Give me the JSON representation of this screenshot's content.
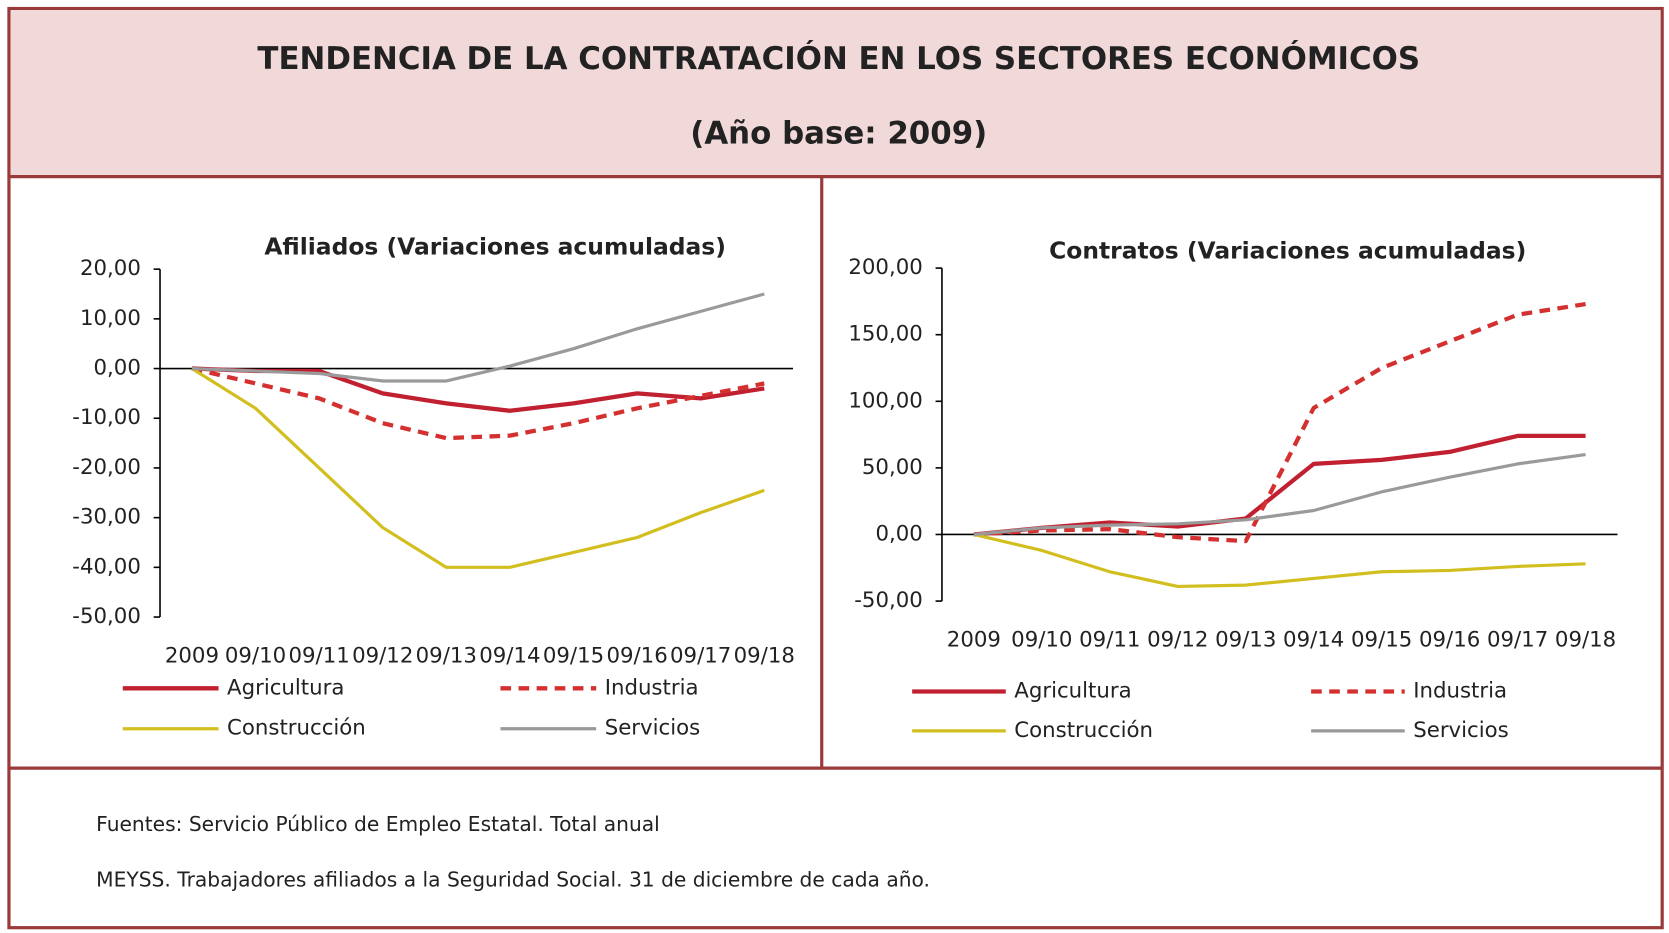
{
  "header": {
    "title": "TENDENCIA DE LA CONTRATACIÓN EN LOS SECTORES ECONÓMICOS",
    "subtitle": "(Año base: 2009)"
  },
  "chart_data": [
    {
      "type": "line",
      "title": "Afiliados (Variaciones acumuladas)",
      "categories": [
        "2009",
        "09/10",
        "09/11",
        "09/12",
        "09/13",
        "09/14",
        "09/15",
        "09/16",
        "09/17",
        "09/18"
      ],
      "ylim": [
        -50,
        20
      ],
      "yticks": [
        {
          "value": -50,
          "label": "-50,00"
        },
        {
          "value": -40,
          "label": "-40,00"
        },
        {
          "value": -30,
          "label": "-30,00"
        },
        {
          "value": -20,
          "label": "-20,00"
        },
        {
          "value": -10,
          "label": "-10,00"
        },
        {
          "value": 0,
          "label": "0,00"
        },
        {
          "value": 10,
          "label": "10,00"
        },
        {
          "value": 20,
          "label": "20,00"
        }
      ],
      "series": [
        {
          "name": "Agricultura",
          "color": "#c0202f",
          "style": "solid",
          "values": [
            0,
            -0.5,
            -0.5,
            -5,
            -7,
            -8.5,
            -7,
            -5,
            -6,
            -4
          ]
        },
        {
          "name": "Industria",
          "color": "#d43030",
          "style": "dashed",
          "values": [
            0,
            -3,
            -6,
            -11,
            -14,
            -13.5,
            -11,
            -8,
            -5.5,
            -3
          ]
        },
        {
          "name": "Construcción",
          "color": "#d2bf1f",
          "style": "solid",
          "values": [
            0,
            -8,
            -20,
            -32,
            -40,
            -40,
            -37,
            -34,
            -29,
            -24.5
          ]
        },
        {
          "name": "Servicios",
          "color": "#9a9a9a",
          "style": "solid",
          "values": [
            0,
            -0.5,
            -1,
            -2.5,
            -2.5,
            0.5,
            4,
            8,
            11.5,
            15
          ]
        }
      ]
    },
    {
      "type": "line",
      "title": "Contratos (Variaciones acumuladas)",
      "categories": [
        "2009",
        "09/10",
        "09/11",
        "09/12",
        "09/13",
        "09/14",
        "09/15",
        "09/16",
        "09/17",
        "09/18"
      ],
      "ylim": [
        -50,
        200
      ],
      "yticks": [
        {
          "value": -50,
          "label": "-50,00"
        },
        {
          "value": 0,
          "label": "0,00"
        },
        {
          "value": 50,
          "label": "50,00"
        },
        {
          "value": 100,
          "label": "100,00"
        },
        {
          "value": 150,
          "label": "150,00"
        },
        {
          "value": 200,
          "label": "200,00"
        }
      ],
      "series": [
        {
          "name": "Agricultura",
          "color": "#c0202f",
          "style": "solid",
          "values": [
            0,
            5,
            9,
            6,
            12,
            53,
            56,
            62,
            74,
            74
          ]
        },
        {
          "name": "Industria",
          "color": "#d43030",
          "style": "dashed",
          "values": [
            0,
            3,
            4,
            -2,
            -5,
            95,
            125,
            145,
            165,
            173
          ]
        },
        {
          "name": "Construcción",
          "color": "#d2bf1f",
          "style": "solid",
          "values": [
            0,
            -12,
            -28,
            -39,
            -38,
            -33,
            -28,
            -27,
            -24,
            -22
          ]
        },
        {
          "name": "Servicios",
          "color": "#9a9a9a",
          "style": "solid",
          "values": [
            0,
            5,
            7,
            8,
            11,
            18,
            32,
            43,
            53,
            60
          ]
        }
      ]
    }
  ],
  "footer": {
    "lines": [
      "Fuentes: Servicio Público de Empleo Estatal. Total anual",
      "MEYSS. Trabajadores afiliados a la Seguridad Social. 31 de diciembre de cada año."
    ]
  }
}
